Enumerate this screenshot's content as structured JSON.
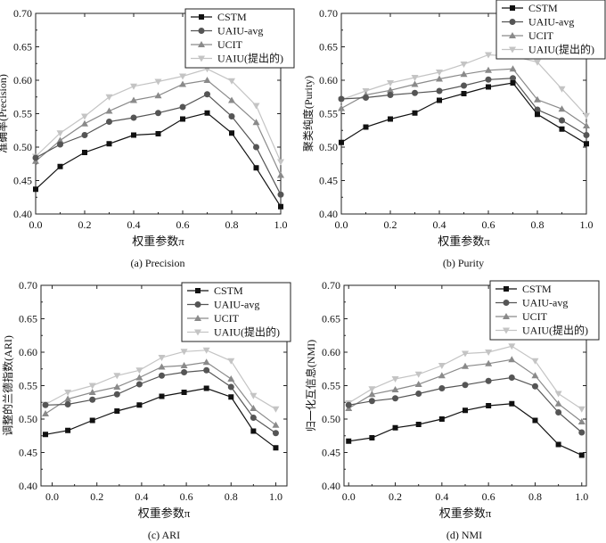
{
  "chart_data": [
    {
      "type": "line",
      "title": "",
      "caption": "(a) Precision",
      "xlabel": "权重参数π",
      "ylabel": "准确率(Precision)",
      "xlim": [
        0.0,
        1.0
      ],
      "ylim": [
        0.4,
        0.7
      ],
      "x_ticks": [
        "0.0",
        "0.2",
        "0.4",
        "0.6",
        "0.8",
        "1.0"
      ],
      "y_ticks": [
        "0.40",
        "0.45",
        "0.50",
        "0.55",
        "0.60",
        "0.65",
        "0.70"
      ],
      "legend_position": "top-right",
      "x": [
        0.0,
        0.1,
        0.2,
        0.3,
        0.4,
        0.5,
        0.6,
        0.7,
        0.8,
        0.9,
        1.0
      ],
      "series": [
        {
          "name": "CSTM",
          "marker": "square",
          "color": "#111111",
          "values": [
            0.437,
            0.471,
            0.492,
            0.505,
            0.518,
            0.52,
            0.542,
            0.551,
            0.521,
            0.469,
            0.411
          ]
        },
        {
          "name": "UAIU-avg",
          "marker": "circle",
          "color": "#555555",
          "values": [
            0.484,
            0.504,
            0.518,
            0.538,
            0.544,
            0.551,
            0.56,
            0.579,
            0.546,
            0.5,
            0.429
          ]
        },
        {
          "name": "UCIT",
          "marker": "triangle-up",
          "color": "#8a8a8a",
          "values": [
            0.479,
            0.51,
            0.535,
            0.554,
            0.57,
            0.577,
            0.594,
            0.6,
            0.57,
            0.537,
            0.458
          ]
        },
        {
          "name": "UAIU(提出的)",
          "marker": "triangle-down",
          "color": "#c4c4c4",
          "values": [
            0.486,
            0.521,
            0.546,
            0.575,
            0.591,
            0.598,
            0.606,
            0.617,
            0.599,
            0.562,
            0.478
          ]
        }
      ]
    },
    {
      "type": "line",
      "title": "",
      "caption": "(b) Purity",
      "xlabel": "权重参数π",
      "ylabel": "聚类纯度(Purity)",
      "xlim": [
        0.0,
        1.0
      ],
      "ylim": [
        0.4,
        0.7
      ],
      "x_ticks": [
        "0.0",
        "0.2",
        "0.4",
        "0.6",
        "0.8",
        "1.0"
      ],
      "y_ticks": [
        "0.40",
        "0.45",
        "0.50",
        "0.55",
        "0.60",
        "0.65",
        "0.70"
      ],
      "legend_position": "top-right",
      "x": [
        0.0,
        0.1,
        0.2,
        0.3,
        0.4,
        0.5,
        0.6,
        0.7,
        0.8,
        0.9,
        1.0
      ],
      "series": [
        {
          "name": "CSTM",
          "marker": "square",
          "color": "#111111",
          "values": [
            0.507,
            0.53,
            0.542,
            0.551,
            0.57,
            0.58,
            0.59,
            0.596,
            0.549,
            0.527,
            0.505
          ]
        },
        {
          "name": "UAIU-avg",
          "marker": "circle",
          "color": "#555555",
          "values": [
            0.572,
            0.574,
            0.578,
            0.581,
            0.584,
            0.592,
            0.601,
            0.603,
            0.556,
            0.54,
            0.518
          ]
        },
        {
          "name": "UCIT",
          "marker": "triangle-up",
          "color": "#8a8a8a",
          "values": [
            0.558,
            0.578,
            0.585,
            0.594,
            0.602,
            0.609,
            0.615,
            0.617,
            0.571,
            0.557,
            0.532
          ]
        },
        {
          "name": "UAIU(提出的)",
          "marker": "triangle-down",
          "color": "#c4c4c4",
          "values": [
            0.571,
            0.584,
            0.596,
            0.604,
            0.612,
            0.624,
            0.638,
            0.636,
            0.627,
            0.587,
            0.547
          ]
        }
      ]
    },
    {
      "type": "line",
      "title": "",
      "caption": "(c) ARI",
      "xlabel": "权重参数π",
      "ylabel": "调整的兰德指数(ARI)",
      "xlim": [
        -0.05,
        1.05
      ],
      "ylim": [
        0.4,
        0.7
      ],
      "x_ticks": [
        "0.0",
        "0.2",
        "0.4",
        "0.6",
        "0.8",
        "1.0"
      ],
      "y_ticks": [
        "0.40",
        "0.45",
        "0.50",
        "0.55",
        "0.60",
        "0.65",
        "0.70"
      ],
      "legend_position": "top-right",
      "x": [
        -0.03,
        0.07,
        0.18,
        0.29,
        0.39,
        0.49,
        0.59,
        0.69,
        0.8,
        0.9,
        1.0
      ],
      "series": [
        {
          "name": "CSTM",
          "marker": "square",
          "color": "#111111",
          "values": [
            0.477,
            0.483,
            0.498,
            0.512,
            0.521,
            0.534,
            0.54,
            0.546,
            0.533,
            0.482,
            0.457
          ]
        },
        {
          "name": "UAIU-avg",
          "marker": "circle",
          "color": "#555555",
          "values": [
            0.521,
            0.522,
            0.529,
            0.537,
            0.552,
            0.565,
            0.57,
            0.573,
            0.548,
            0.502,
            0.479
          ]
        },
        {
          "name": "UCIT",
          "marker": "triangle-up",
          "color": "#8a8a8a",
          "values": [
            0.508,
            0.53,
            0.54,
            0.548,
            0.562,
            0.578,
            0.58,
            0.585,
            0.56,
            0.516,
            0.491
          ]
        },
        {
          "name": "UAIU(提出的)",
          "marker": "triangle-down",
          "color": "#c4c4c4",
          "values": [
            0.522,
            0.54,
            0.55,
            0.565,
            0.573,
            0.592,
            0.601,
            0.603,
            0.587,
            0.535,
            0.515
          ]
        }
      ]
    },
    {
      "type": "line",
      "title": "",
      "caption": "(d) NMI",
      "xlabel": "权重参数π",
      "ylabel": "归一化互信息(NMI)",
      "xlim": [
        -0.02,
        1.02
      ],
      "ylim": [
        0.4,
        0.7
      ],
      "x_ticks": [
        "0.0",
        "0.2",
        "0.4",
        "0.6",
        "0.8",
        "1.0"
      ],
      "y_ticks": [
        "0.40",
        "0.45",
        "0.50",
        "0.55",
        "0.60",
        "0.65",
        "0.70"
      ],
      "legend_position": "top-right",
      "x": [
        0.0,
        0.1,
        0.2,
        0.3,
        0.4,
        0.5,
        0.6,
        0.7,
        0.8,
        0.9,
        1.0
      ],
      "series": [
        {
          "name": "CSTM",
          "marker": "square",
          "color": "#111111",
          "values": [
            0.467,
            0.472,
            0.487,
            0.492,
            0.5,
            0.513,
            0.52,
            0.523,
            0.498,
            0.462,
            0.446
          ]
        },
        {
          "name": "UAIU-avg",
          "marker": "circle",
          "color": "#555555",
          "values": [
            0.521,
            0.527,
            0.531,
            0.538,
            0.546,
            0.551,
            0.557,
            0.562,
            0.549,
            0.51,
            0.48
          ]
        },
        {
          "name": "UCIT",
          "marker": "triangle-up",
          "color": "#8a8a8a",
          "values": [
            0.516,
            0.537,
            0.544,
            0.552,
            0.565,
            0.579,
            0.583,
            0.589,
            0.565,
            0.523,
            0.496
          ]
        },
        {
          "name": "UAIU(提出的)",
          "marker": "triangle-down",
          "color": "#c4c4c4",
          "values": [
            0.524,
            0.545,
            0.56,
            0.567,
            0.58,
            0.598,
            0.6,
            0.609,
            0.587,
            0.538,
            0.515
          ]
        }
      ]
    }
  ]
}
